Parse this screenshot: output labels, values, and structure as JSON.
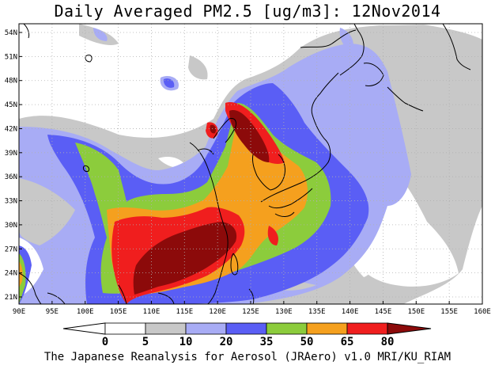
{
  "title": "Daily Averaged PM2.5 [ug/m3]: 12Nov2014",
  "footer": "The Japanese Reanalysis for Aerosol (JRAero) v1.0 MRI/KU_RIAM",
  "x_ticks": [
    "90E",
    "95E",
    "100E",
    "105E",
    "110E",
    "115E",
    "120E",
    "125E",
    "130E",
    "135E",
    "140E",
    "145E",
    "150E",
    "155E",
    "160E"
  ],
  "y_ticks": [
    "21N",
    "24N",
    "27N",
    "30N",
    "33N",
    "36N",
    "39N",
    "42N",
    "45N",
    "48N",
    "51N",
    "54N"
  ],
  "colorbar": {
    "labels": [
      "0",
      "5",
      "10",
      "20",
      "35",
      "50",
      "65",
      "80"
    ],
    "colors": [
      "#ffffff",
      "#c8c8c8",
      "#a8acf5",
      "#5a5ef5",
      "#8ccc3c",
      "#f5a01e",
      "#f01e1e",
      "#8c0a0a"
    ]
  },
  "levels": {
    "gray": "#c8c8c8",
    "lightblue": "#a8acf5",
    "blue": "#5a5ef5",
    "green": "#8ccc3c",
    "orange": "#f5a01e",
    "red": "#f01e1e",
    "darkred": "#8c0a0a"
  }
}
